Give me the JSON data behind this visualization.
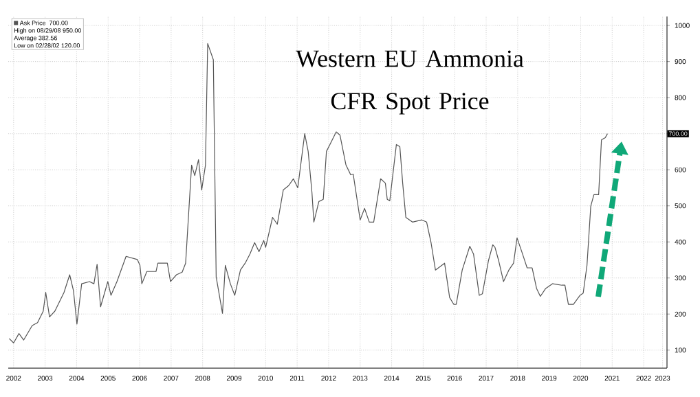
{
  "chart_data": {
    "type": "line",
    "title": "Western EU Ammonia CFR Spot Price",
    "x": [
      2002.36,
      2002.5,
      2002.67,
      2002.82,
      2003.09,
      2003.26,
      2003.44,
      2003.52,
      2003.64,
      2003.81,
      2004.1,
      2004.28,
      2004.4,
      2004.51,
      2004.66,
      2004.91,
      2005.05,
      2005.15,
      2005.26,
      2005.49,
      2005.59,
      2005.78,
      2006.07,
      2006.43,
      2006.51,
      2006.57,
      2006.73,
      2007.02,
      2007.08,
      2007.38,
      2007.48,
      2007.67,
      2007.85,
      2007.96,
      2008.15,
      2008.25,
      2008.37,
      2008.47,
      2008.59,
      2008.66,
      2008.84,
      2008.93,
      2009.13,
      2009.22,
      2009.38,
      2009.52,
      2009.7,
      2009.85,
      2010.0,
      2010.15,
      2010.29,
      2010.44,
      2010.5,
      2010.72,
      2010.87,
      2011.06,
      2011.23,
      2011.38,
      2011.52,
      2011.74,
      2011.85,
      2011.97,
      2012.03,
      2012.19,
      2012.33,
      2012.43,
      2012.54,
      2012.74,
      2012.86,
      2013.05,
      2013.2,
      2013.28,
      2013.5,
      2013.64,
      2013.79,
      2013.93,
      2014.15,
      2014.3,
      2014.36,
      2014.44,
      2014.65,
      2014.76,
      2014.85,
      2014.95,
      2015.16,
      2015.46,
      2015.61,
      2015.75,
      2015.89,
      2016.18,
      2016.34,
      2016.47,
      2016.55,
      2016.74,
      2016.98,
      2017.1,
      2017.28,
      2017.38,
      2017.57,
      2017.71,
      2017.78,
      2017.9,
      2018.05,
      2018.22,
      2018.37,
      2018.48,
      2018.63,
      2018.8,
      2018.96,
      2019.1,
      2019.22,
      2019.39,
      2019.61,
      2019.9,
      2020.0,
      2020.11,
      2020.27,
      2020.48,
      2020.58,
      2020.7,
      2020.82,
      2020.92,
      2021.07,
      2021.16,
      2021.28,
      2021.35
    ],
    "series": [
      {
        "name": "Ask Price",
        "color": "#555555",
        "values": [
          132,
          120,
          146,
          128,
          168,
          176,
          208,
          260,
          192,
          208,
          260,
          309,
          265,
          172,
          284,
          290,
          284,
          338,
          220,
          290,
          252,
          290,
          360,
          351,
          335,
          284,
          318,
          318,
          341,
          341,
          290,
          309,
          316,
          341,
          613,
          584,
          628,
          544,
          613,
          950,
          905,
          303,
          202,
          335,
          284,
          252,
          322,
          341,
          366,
          398,
          373,
          404,
          385,
          468,
          449,
          544,
          556,
          575,
          550,
          700,
          651,
          537,
          455,
          512,
          518,
          651,
          670,
          705,
          696,
          613,
          586,
          588,
          461,
          493,
          455,
          455,
          575,
          563,
          518,
          514,
          670,
          664,
          563,
          468,
          455,
          461,
          455,
          398,
          322,
          341,
          246,
          227,
          227,
          322,
          388,
          366,
          252,
          256,
          347,
          392,
          385,
          347,
          290,
          322,
          341,
          411,
          373,
          328,
          328,
          271,
          249,
          271,
          284,
          280,
          280,
          227,
          227,
          252,
          258,
          335,
          499,
          531,
          531,
          683,
          689,
          700
        ]
      }
    ],
    "xlim": [
      2002.33,
      2023.24
    ],
    "ylim": [
      50,
      1025
    ],
    "xticks": [
      {
        "value": 2002.5,
        "label": "2002"
      },
      {
        "value": 2003.5,
        "label": "2003"
      },
      {
        "value": 2004.5,
        "label": "2004"
      },
      {
        "value": 2005.5,
        "label": "2005"
      },
      {
        "value": 2006.5,
        "label": "2006"
      },
      {
        "value": 2007.5,
        "label": "2007"
      },
      {
        "value": 2008.5,
        "label": "2008"
      },
      {
        "value": 2009.5,
        "label": "2009"
      },
      {
        "value": 2010.5,
        "label": "2010"
      },
      {
        "value": 2011.5,
        "label": "2011"
      },
      {
        "value": 2012.5,
        "label": "2012"
      },
      {
        "value": 2013.5,
        "label": "2013"
      },
      {
        "value": 2014.5,
        "label": "2014"
      },
      {
        "value": 2015.5,
        "label": "2015"
      },
      {
        "value": 2016.5,
        "label": "2016"
      },
      {
        "value": 2017.5,
        "label": "2017"
      },
      {
        "value": 2018.5,
        "label": "2018"
      },
      {
        "value": 2019.5,
        "label": "2019"
      },
      {
        "value": 2020.5,
        "label": "2020"
      },
      {
        "value": 2021.5,
        "label": "2021"
      },
      {
        "value": 2022.5,
        "label": "2022"
      },
      {
        "value": 2023.1,
        "label": "2023"
      }
    ],
    "yticks": [
      100,
      200,
      300,
      400,
      500,
      600,
      {
        "value": 700,
        "label": null
      },
      800,
      900,
      1000
    ],
    "annotations": [
      "700.00",
      "High on 08/29/08 950.00",
      "Average 382.56",
      "Low on 02/28/02 120.00",
      {
        "text": "700.00",
        "y": 700
      }
    ],
    "grid": true,
    "legend": "top left",
    "marker": "none",
    "line_style": "solid"
  }
}
